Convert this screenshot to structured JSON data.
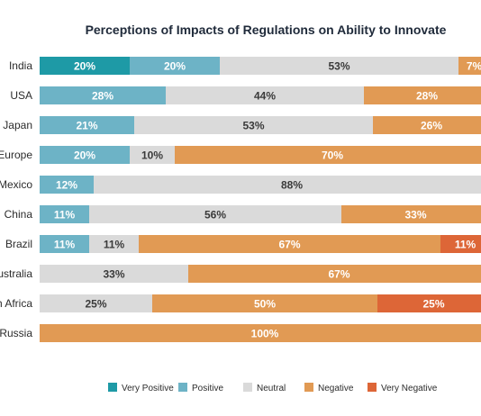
{
  "chart_data": {
    "type": "bar",
    "orientation": "horizontal",
    "stacked": true,
    "title": "Perceptions of Impacts of Regulations on Ability to Innovate",
    "xlabel": "",
    "ylabel": "",
    "xlim": [
      0,
      100
    ],
    "categories": [
      "India",
      "USA",
      "Japan",
      "Europe",
      "Mexico",
      "China",
      "Brazil",
      "Australia",
      "South Africa",
      "Russia"
    ],
    "series": [
      {
        "name": "Very Positive",
        "color": "#1e9aa6",
        "values": [
          20,
          0,
          0,
          0,
          0,
          0,
          0,
          0,
          0,
          0
        ]
      },
      {
        "name": "Positive",
        "color": "#6db3c6",
        "values": [
          20,
          28,
          21,
          20,
          12,
          11,
          11,
          0,
          0,
          0
        ]
      },
      {
        "name": "Neutral",
        "color": "#dadada",
        "values": [
          53,
          44,
          53,
          10,
          88,
          56,
          11,
          33,
          25,
          0
        ]
      },
      {
        "name": "Negative",
        "color": "#e19a54",
        "values": [
          7,
          28,
          26,
          70,
          0,
          33,
          67,
          67,
          50,
          100
        ]
      },
      {
        "name": "Very Negative",
        "color": "#dd6637",
        "values": [
          0,
          0,
          0,
          0,
          0,
          0,
          11,
          0,
          25,
          0
        ]
      }
    ],
    "grid": false,
    "legend": "bottom"
  }
}
